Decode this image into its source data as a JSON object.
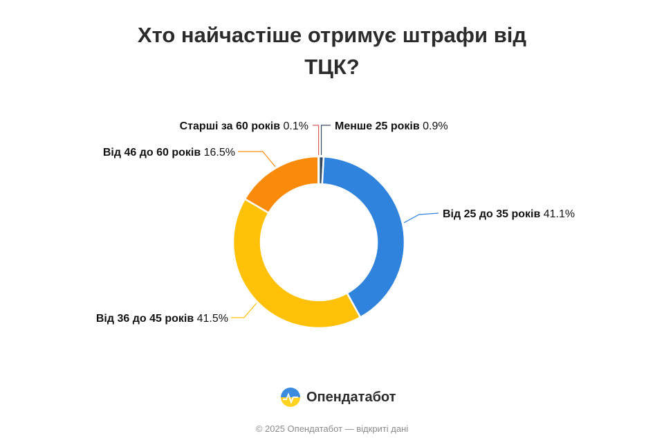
{
  "header": {
    "title_line1": "Хто найчастіше отримує штрафи від",
    "title_line2": "ТЦК?"
  },
  "chart_data": {
    "type": "pie",
    "title": "Хто найчастіше отримує штрафи від ТЦК?",
    "donut": true,
    "categories": [
      "Менше 25 років",
      "Від 25 до 35 років",
      "Від 36 до 45 років",
      "Від 46 до 60 років",
      "Старші за 60 років"
    ],
    "values": [
      0.9,
      41.1,
      41.5,
      16.5,
      0.1
    ],
    "value_labels": [
      "0.9%",
      "41.1%",
      "41.5%",
      "16.5%",
      "0.1%"
    ],
    "colors": [
      "#34495e",
      "#3083dc",
      "#ffc107",
      "#f98a0a",
      "#e05a5a"
    ]
  },
  "brand": {
    "name": "Опендатабот",
    "icon": "opendatabot-logo-icon"
  },
  "footer": {
    "text": "© 2025 Опендатабот — відкриті дані"
  }
}
